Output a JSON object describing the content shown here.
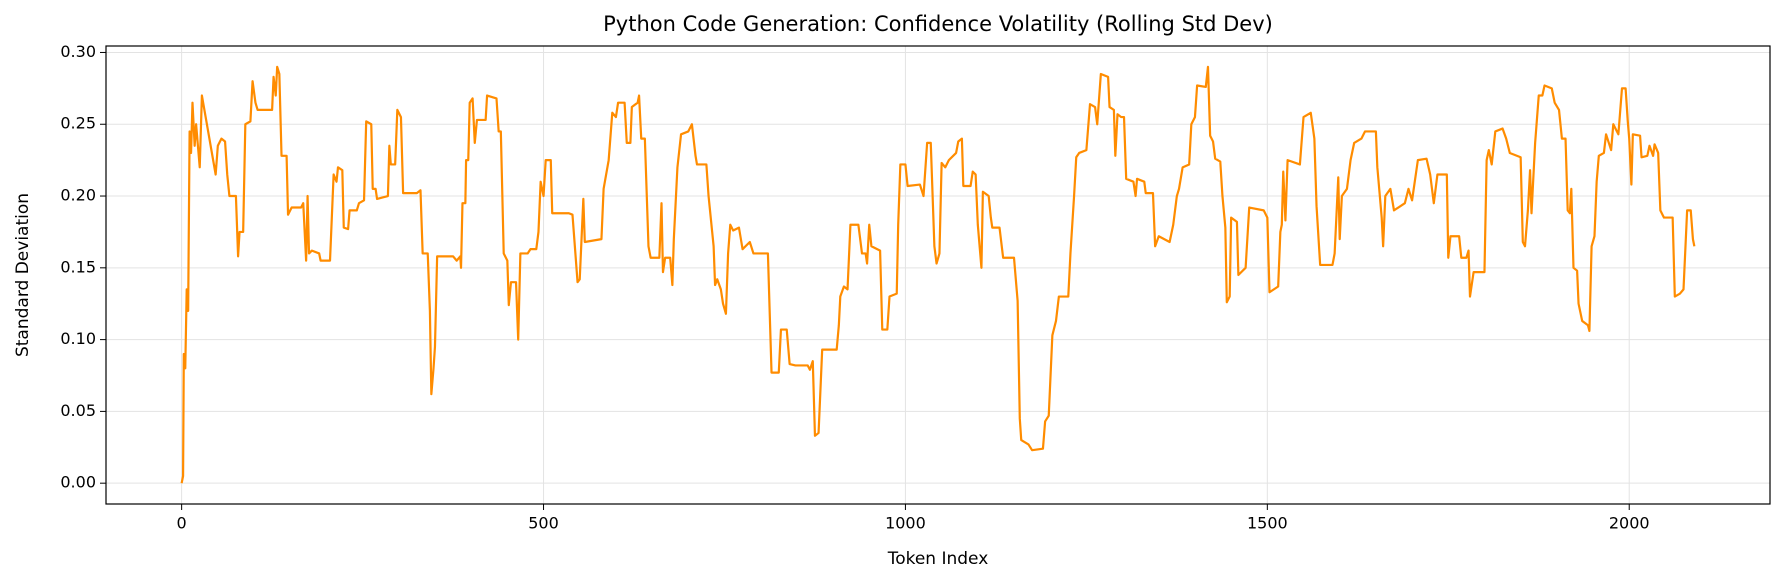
{
  "chart_data": {
    "type": "line",
    "title": "Python Code Generation: Confidence Volatility (Rolling Std Dev)",
    "x_label": "Token Index",
    "y_label": "Standard Deviation",
    "grid": true,
    "xlim": [
      -104.5,
      2194.5
    ],
    "ylim": [
      -0.0145,
      0.3045
    ],
    "xticks": [
      0,
      500,
      1000,
      1500,
      2000
    ],
    "yticks": [
      {
        "value": 0,
        "label": "0.00"
      },
      0.05,
      {
        "value": 0.1,
        "label": "0.10"
      },
      0.15,
      {
        "value": 0.2,
        "label": "0.20"
      },
      0.25,
      {
        "value": 0.3,
        "label": "0.30"
      }
    ],
    "x": [
      0,
      2,
      3,
      5,
      7,
      9,
      11,
      13,
      15,
      18,
      20,
      25,
      28,
      47,
      50,
      55,
      60,
      63,
      66,
      75,
      78,
      80,
      85,
      88,
      95,
      98,
      102,
      105,
      125,
      127,
      130,
      132,
      135,
      138,
      145,
      147,
      152,
      165,
      168,
      172,
      174,
      176,
      180,
      190,
      192,
      205,
      210,
      214,
      216,
      222,
      224,
      230,
      232,
      242,
      245,
      252,
      255,
      262,
      264,
      268,
      270,
      285,
      287,
      289,
      295,
      298,
      303,
      306,
      325,
      330,
      333,
      340,
      343,
      345,
      348,
      350,
      353,
      375,
      380,
      385,
      386,
      388,
      392,
      393,
      396,
      398,
      402,
      405,
      408,
      420,
      422,
      435,
      438,
      441,
      445,
      450,
      452,
      455,
      462,
      465,
      468,
      478,
      482,
      490,
      493,
      496,
      500,
      503,
      510,
      512,
      535,
      540,
      547,
      550,
      555,
      557,
      580,
      583,
      590,
      595,
      600,
      603,
      612,
      615,
      620,
      622,
      630,
      632,
      635,
      640,
      645,
      648,
      660,
      663,
      665,
      668,
      675,
      678,
      680,
      685,
      690,
      700,
      705,
      710,
      712,
      725,
      728,
      730,
      733,
      735,
      737,
      740,
      745,
      748,
      752,
      755,
      758,
      762,
      770,
      775,
      785,
      790,
      810,
      815,
      825,
      828,
      836,
      840,
      848,
      865,
      868,
      872,
      875,
      880,
      885,
      905,
      908,
      910,
      915,
      920,
      924,
      935,
      940,
      945,
      947,
      950,
      953,
      965,
      968,
      975,
      978,
      988,
      990,
      993,
      1000,
      1003,
      1020,
      1025,
      1030,
      1035,
      1040,
      1043,
      1047,
      1050,
      1055,
      1060,
      1070,
      1073,
      1078,
      1080,
      1090,
      1093,
      1097,
      1100,
      1105,
      1107,
      1115,
      1118,
      1120,
      1130,
      1135,
      1150,
      1155,
      1158,
      1160,
      1170,
      1175,
      1190,
      1193,
      1198,
      1203,
      1208,
      1212,
      1225,
      1228,
      1233,
      1236,
      1240,
      1250,
      1255,
      1262,
      1265,
      1270,
      1280,
      1282,
      1288,
      1290,
      1293,
      1298,
      1302,
      1305,
      1315,
      1318,
      1320,
      1330,
      1332,
      1342,
      1345,
      1350,
      1365,
      1370,
      1375,
      1378,
      1383,
      1392,
      1395,
      1400,
      1403,
      1415,
      1418,
      1421,
      1425,
      1428,
      1435,
      1438,
      1442,
      1444,
      1448,
      1450,
      1458,
      1460,
      1470,
      1475,
      1495,
      1500,
      1503,
      1515,
      1518,
      1520,
      1522,
      1525,
      1528,
      1545,
      1550,
      1560,
      1565,
      1568,
      1573,
      1590,
      1593,
      1598,
      1600,
      1603,
      1610,
      1615,
      1620,
      1630,
      1635,
      1650,
      1652,
      1658,
      1660,
      1663,
      1670,
      1675,
      1690,
      1695,
      1700,
      1708,
      1720,
      1725,
      1730,
      1735,
      1748,
      1750,
      1753,
      1765,
      1768,
      1775,
      1778,
      1780,
      1785,
      1800,
      1803,
      1806,
      1810,
      1815,
      1825,
      1830,
      1835,
      1850,
      1853,
      1856,
      1860,
      1863,
      1865,
      1870,
      1875,
      1880,
      1883,
      1893,
      1897,
      1903,
      1907,
      1912,
      1915,
      1918,
      1920,
      1923,
      1928,
      1930,
      1935,
      1943,
      1945,
      1948,
      1952,
      1955,
      1958,
      1965,
      1968,
      1975,
      1978,
      1985,
      1990,
      1995,
      1998,
      2000,
      2003,
      2005,
      2015,
      2017,
      2025,
      2028,
      2033,
      2035,
      2040,
      2043,
      2048,
      2060,
      2063,
      2070,
      2075,
      2080,
      2085,
      2088,
      2090
    ],
    "series": [
      {
        "color": "#ff8c00",
        "values": [
          0,
          0.005,
          0.09,
          0.08,
          0.135,
          0.12,
          0.245,
          0.23,
          0.265,
          0.235,
          0.25,
          0.22,
          0.27,
          0.215,
          0.235,
          0.24,
          0.238,
          0.215,
          0.2,
          0.2,
          0.158,
          0.175,
          0.175,
          0.25,
          0.252,
          0.28,
          0.265,
          0.26,
          0.26,
          0.283,
          0.27,
          0.29,
          0.285,
          0.228,
          0.228,
          0.187,
          0.192,
          0.192,
          0.195,
          0.155,
          0.2,
          0.16,
          0.162,
          0.16,
          0.155,
          0.155,
          0.215,
          0.21,
          0.22,
          0.218,
          0.178,
          0.177,
          0.19,
          0.19,
          0.195,
          0.197,
          0.252,
          0.25,
          0.205,
          0.205,
          0.198,
          0.2,
          0.235,
          0.222,
          0.222,
          0.26,
          0.255,
          0.202,
          0.202,
          0.204,
          0.16,
          0.16,
          0.12,
          0.062,
          0.08,
          0.095,
          0.158,
          0.158,
          0.155,
          0.158,
          0.15,
          0.195,
          0.195,
          0.225,
          0.225,
          0.265,
          0.268,
          0.237,
          0.253,
          0.253,
          0.27,
          0.268,
          0.245,
          0.245,
          0.16,
          0.155,
          0.124,
          0.14,
          0.14,
          0.1,
          0.16,
          0.16,
          0.163,
          0.163,
          0.175,
          0.21,
          0.2,
          0.225,
          0.225,
          0.188,
          0.188,
          0.187,
          0.14,
          0.142,
          0.198,
          0.168,
          0.17,
          0.205,
          0.225,
          0.258,
          0.255,
          0.265,
          0.265,
          0.237,
          0.237,
          0.262,
          0.265,
          0.27,
          0.24,
          0.24,
          0.165,
          0.157,
          0.157,
          0.195,
          0.147,
          0.157,
          0.157,
          0.138,
          0.17,
          0.22,
          0.243,
          0.245,
          0.25,
          0.228,
          0.222,
          0.222,
          0.2,
          0.19,
          0.175,
          0.165,
          0.138,
          0.142,
          0.135,
          0.125,
          0.118,
          0.16,
          0.18,
          0.176,
          0.178,
          0.163,
          0.168,
          0.16,
          0.16,
          0.077,
          0.077,
          0.107,
          0.107,
          0.083,
          0.082,
          0.082,
          0.079,
          0.085,
          0.033,
          0.035,
          0.093,
          0.093,
          0.11,
          0.13,
          0.137,
          0.135,
          0.18,
          0.18,
          0.16,
          0.16,
          0.153,
          0.18,
          0.165,
          0.162,
          0.107,
          0.107,
          0.13,
          0.132,
          0.18,
          0.222,
          0.222,
          0.207,
          0.208,
          0.2,
          0.237,
          0.237,
          0.165,
          0.153,
          0.16,
          0.223,
          0.22,
          0.225,
          0.23,
          0.238,
          0.24,
          0.207,
          0.207,
          0.217,
          0.215,
          0.18,
          0.15,
          0.203,
          0.2,
          0.185,
          0.178,
          0.178,
          0.157,
          0.157,
          0.127,
          0.045,
          0.03,
          0.027,
          0.023,
          0.024,
          0.043,
          0.047,
          0.103,
          0.113,
          0.13,
          0.13,
          0.16,
          0.2,
          0.227,
          0.23,
          0.232,
          0.264,
          0.262,
          0.25,
          0.285,
          0.283,
          0.262,
          0.26,
          0.228,
          0.257,
          0.255,
          0.255,
          0.212,
          0.21,
          0.2,
          0.212,
          0.21,
          0.202,
          0.202,
          0.165,
          0.172,
          0.168,
          0.18,
          0.2,
          0.205,
          0.22,
          0.222,
          0.25,
          0.255,
          0.277,
          0.276,
          0.29,
          0.242,
          0.238,
          0.226,
          0.224,
          0.2,
          0.178,
          0.126,
          0.13,
          0.185,
          0.182,
          0.145,
          0.15,
          0.192,
          0.19,
          0.185,
          0.133,
          0.137,
          0.175,
          0.18,
          0.217,
          0.183,
          0.225,
          0.222,
          0.255,
          0.258,
          0.24,
          0.193,
          0.152,
          0.152,
          0.16,
          0.213,
          0.17,
          0.2,
          0.205,
          0.225,
          0.237,
          0.24,
          0.245,
          0.245,
          0.22,
          0.185,
          0.165,
          0.2,
          0.205,
          0.19,
          0.195,
          0.205,
          0.197,
          0.225,
          0.226,
          0.215,
          0.195,
          0.215,
          0.215,
          0.157,
          0.172,
          0.172,
          0.157,
          0.157,
          0.162,
          0.13,
          0.147,
          0.147,
          0.225,
          0.232,
          0.222,
          0.245,
          0.247,
          0.24,
          0.23,
          0.227,
          0.168,
          0.165,
          0.19,
          0.218,
          0.188,
          0.237,
          0.27,
          0.27,
          0.277,
          0.275,
          0.265,
          0.26,
          0.24,
          0.24,
          0.19,
          0.188,
          0.205,
          0.15,
          0.148,
          0.125,
          0.113,
          0.11,
          0.106,
          0.165,
          0.172,
          0.21,
          0.228,
          0.23,
          0.243,
          0.232,
          0.25,
          0.243,
          0.275,
          0.275,
          0.252,
          0.24,
          0.208,
          0.243,
          0.242,
          0.227,
          0.228,
          0.235,
          0.228,
          0.236,
          0.23,
          0.19,
          0.185,
          0.185,
          0.13,
          0.132,
          0.135,
          0.19,
          0.19,
          0.17,
          0.165
        ]
      }
    ]
  }
}
